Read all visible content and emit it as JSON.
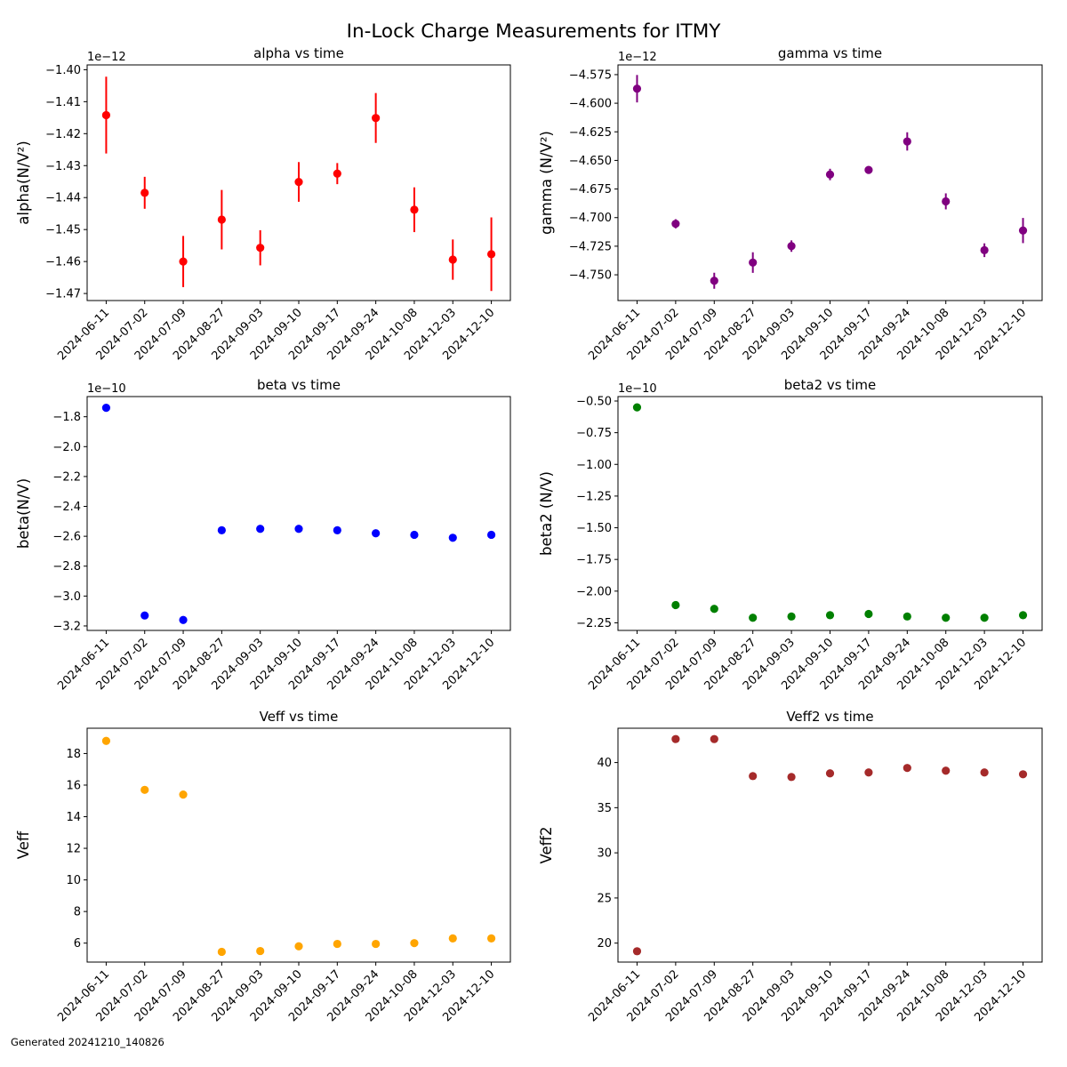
{
  "figure_title": "In-Lock Charge Measurements for ITMY",
  "footer": "Generated 20241210_140826",
  "chart_data": [
    {
      "type": "scatter",
      "title": "alpha vs time",
      "ylabel": "alpha(N/V²)",
      "offset_text": "1e−12",
      "color": "#ff0000",
      "error_bars": true,
      "x": [
        "2024-06-11",
        "2024-07-02",
        "2024-07-09",
        "2024-08-27",
        "2024-09-03",
        "2024-09-10",
        "2024-09-17",
        "2024-09-24",
        "2024-10-08",
        "2024-12-03",
        "2024-12-10"
      ],
      "y": [
        -1.4142,
        -1.4385,
        -1.46,
        -1.4469,
        -1.4557,
        -1.4351,
        -1.4325,
        -1.4151,
        -1.4438,
        -1.4594,
        -1.4577
      ],
      "yerr": [
        0.012,
        0.005,
        0.008,
        0.0093,
        0.0055,
        0.0062,
        0.0033,
        0.0078,
        0.007,
        0.0063,
        0.0115
      ],
      "ylim": [
        -1.4722,
        -1.3985
      ],
      "yticks": [
        -1.4,
        -1.41,
        -1.42,
        -1.43,
        -1.44,
        -1.45,
        -1.46,
        -1.47
      ],
      "ytick_labels": [
        "−1.40",
        "−1.41",
        "−1.42",
        "−1.43",
        "−1.44",
        "−1.45",
        "−1.46",
        "−1.47"
      ]
    },
    {
      "type": "scatter",
      "title": "gamma vs time",
      "ylabel": "gamma (N/V²)",
      "offset_text": "1e−12",
      "color": "#800080",
      "error_bars": true,
      "x": [
        "2024-06-11",
        "2024-07-02",
        "2024-07-09",
        "2024-08-27",
        "2024-09-03",
        "2024-09-10",
        "2024-09-17",
        "2024-09-24",
        "2024-10-08",
        "2024-12-03",
        "2024-12-10"
      ],
      "y": [
        -4.5873,
        -4.7054,
        -4.7552,
        -4.7393,
        -4.7249,
        -4.6623,
        -4.6583,
        -4.6334,
        -4.6858,
        -4.7285,
        -4.7113
      ],
      "yerr": [
        0.012,
        0.004,
        0.007,
        0.009,
        0.005,
        0.005,
        0.002,
        0.008,
        0.007,
        0.006,
        0.011
      ],
      "ylim": [
        -4.7725,
        -4.5665
      ],
      "yticks": [
        -4.575,
        -4.6,
        -4.625,
        -4.65,
        -4.675,
        -4.7,
        -4.725,
        -4.75
      ],
      "ytick_labels": [
        "−4.575",
        "−4.600",
        "−4.625",
        "−4.650",
        "−4.675",
        "−4.700",
        "−4.725",
        "−4.750"
      ]
    },
    {
      "type": "scatter",
      "title": "beta vs time",
      "ylabel": "beta(N/V)",
      "offset_text": "1e−10",
      "color": "#0000ff",
      "error_bars": false,
      "x": [
        "2024-06-11",
        "2024-07-02",
        "2024-07-09",
        "2024-08-27",
        "2024-09-03",
        "2024-09-10",
        "2024-09-17",
        "2024-09-24",
        "2024-10-08",
        "2024-12-03",
        "2024-12-10"
      ],
      "y": [
        -1.74,
        -3.13,
        -3.16,
        -2.56,
        -2.55,
        -2.55,
        -2.56,
        -2.58,
        -2.59,
        -2.61,
        -2.59
      ],
      "ylim": [
        -3.23,
        -1.665
      ],
      "yticks": [
        -1.8,
        -2.0,
        -2.2,
        -2.4,
        -2.6,
        -2.8,
        -3.0,
        -3.2
      ],
      "ytick_labels": [
        "−1.8",
        "−2.0",
        "−2.2",
        "−2.4",
        "−2.6",
        "−2.8",
        "−3.0",
        "−3.2"
      ]
    },
    {
      "type": "scatter",
      "title": "beta2 vs time",
      "ylabel": "beta2 (N/V)",
      "offset_text": "1e−10",
      "color": "#008000",
      "error_bars": false,
      "x": [
        "2024-06-11",
        "2024-07-02",
        "2024-07-09",
        "2024-08-27",
        "2024-09-03",
        "2024-09-10",
        "2024-09-17",
        "2024-09-24",
        "2024-10-08",
        "2024-12-03",
        "2024-12-10"
      ],
      "y": [
        -0.55,
        -2.11,
        -2.14,
        -2.21,
        -2.2,
        -2.19,
        -2.18,
        -2.2,
        -2.21,
        -2.21,
        -2.19
      ],
      "ylim": [
        -2.31,
        -0.465
      ],
      "yticks": [
        -0.5,
        -0.75,
        -1.0,
        -1.25,
        -1.5,
        -1.75,
        -2.0,
        -2.25
      ],
      "ytick_labels": [
        "−0.50",
        "−0.75",
        "−1.00",
        "−1.25",
        "−1.50",
        "−1.75",
        "−2.00",
        "−2.25"
      ]
    },
    {
      "type": "scatter",
      "title": "Veff vs time",
      "ylabel": "Veff",
      "offset_text": "",
      "color": "#ffa500",
      "error_bars": false,
      "x": [
        "2024-06-11",
        "2024-07-02",
        "2024-07-09",
        "2024-08-27",
        "2024-09-03",
        "2024-09-10",
        "2024-09-17",
        "2024-09-24",
        "2024-10-08",
        "2024-12-03",
        "2024-12-10"
      ],
      "y": [
        18.8,
        15.7,
        15.4,
        5.45,
        5.5,
        5.8,
        5.95,
        5.95,
        6.0,
        6.3,
        6.3
      ],
      "ylim": [
        4.8,
        19.6
      ],
      "yticks": [
        6,
        8,
        10,
        12,
        14,
        16,
        18
      ],
      "ytick_labels": [
        "6",
        "8",
        "10",
        "12",
        "14",
        "16",
        "18"
      ]
    },
    {
      "type": "scatter",
      "title": "Veff2 vs time",
      "ylabel": "Veff2",
      "offset_text": "",
      "color": "#a52a2a",
      "error_bars": false,
      "x": [
        "2024-06-11",
        "2024-07-02",
        "2024-07-09",
        "2024-08-27",
        "2024-09-03",
        "2024-09-10",
        "2024-09-17",
        "2024-09-24",
        "2024-10-08",
        "2024-12-03",
        "2024-12-10"
      ],
      "y": [
        19.1,
        42.6,
        42.6,
        38.5,
        38.4,
        38.8,
        38.9,
        39.4,
        39.1,
        38.9,
        38.7
      ],
      "ylim": [
        17.9,
        43.8
      ],
      "yticks": [
        20,
        25,
        30,
        35,
        40
      ],
      "ytick_labels": [
        "20",
        "25",
        "30",
        "35",
        "40"
      ]
    }
  ]
}
